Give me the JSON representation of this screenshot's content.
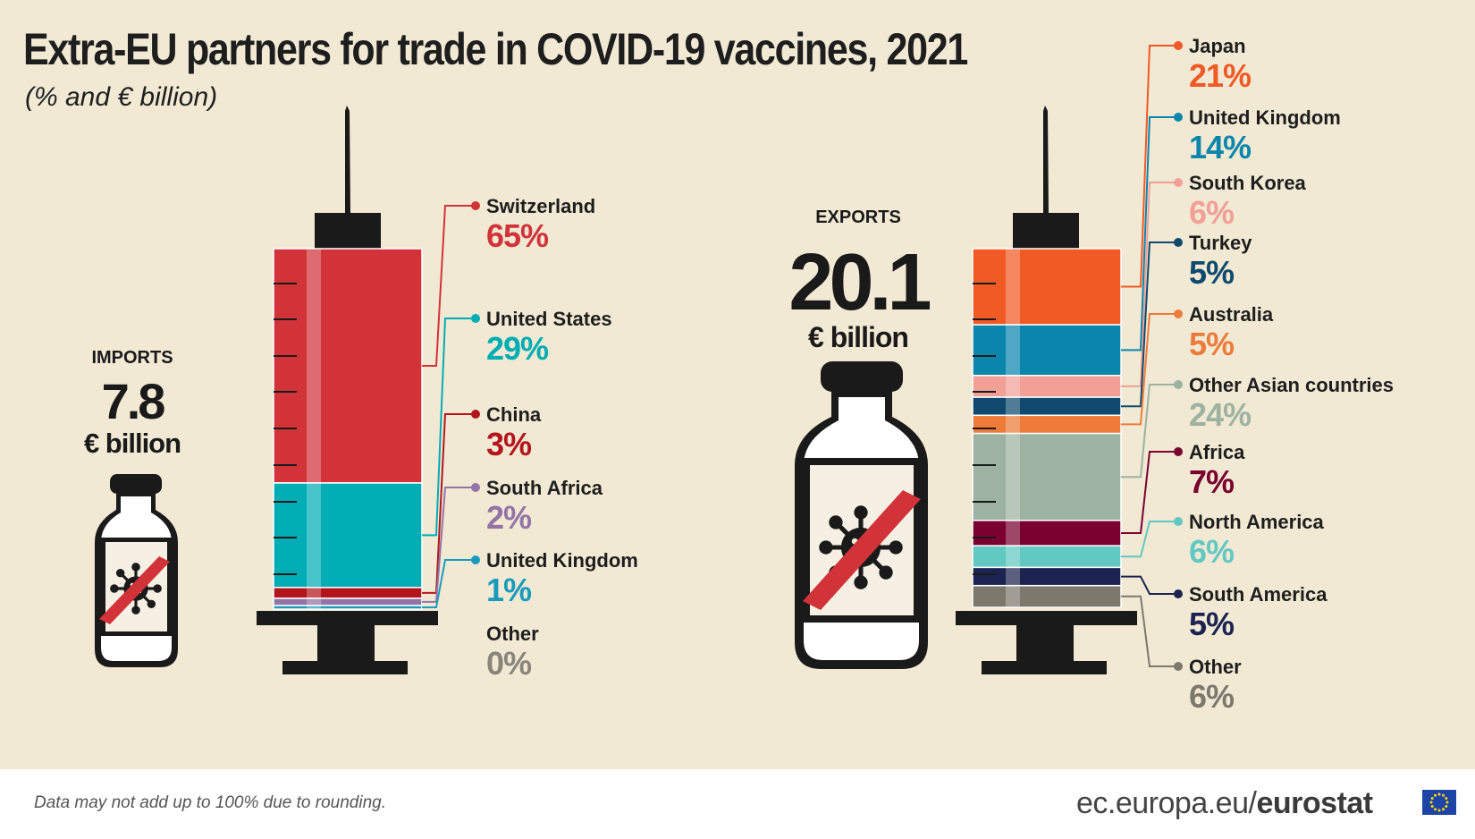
{
  "title": "Extra-EU partners for trade in COVID-19 vaccines, 2021",
  "subtitle": "(% and € billion)",
  "footnote": "Data may not add up to 100% due to rounding.",
  "source": {
    "domain": "ec.europa.eu/",
    "brand": "eurostat"
  },
  "colors": {
    "background": "#f1e9d4",
    "ink": "#1e1e1e"
  },
  "chart_data": [
    {
      "type": "bar",
      "stacked": true,
      "flow_label": "IMPORTS",
      "total_value": "7.8",
      "total_unit": "€ billion",
      "categories": [
        "Switzerland",
        "United States",
        "China",
        "South Africa",
        "United Kingdom",
        "Other"
      ],
      "values": [
        65,
        29,
        3,
        2,
        1,
        0
      ],
      "labels": [
        "65%",
        "29%",
        "3%",
        "2%",
        "1%",
        "0%"
      ],
      "colors": [
        "#d13339",
        "#00adb4",
        "#b4151d",
        "#9474a6",
        "#1a9bbd",
        "#8a857a"
      ]
    },
    {
      "type": "bar",
      "stacked": true,
      "flow_label": "EXPORTS",
      "total_value": "20.1",
      "total_unit": "€ billion",
      "categories": [
        "Japan",
        "United Kingdom",
        "South Korea",
        "Turkey",
        "Australia",
        "Other Asian countries",
        "Africa",
        "North America",
        "South America",
        "Other"
      ],
      "values": [
        21,
        14,
        6,
        5,
        5,
        24,
        7,
        6,
        5,
        6
      ],
      "labels": [
        "21%",
        "14%",
        "6%",
        "5%",
        "5%",
        "24%",
        "7%",
        "6%",
        "5%",
        "6%"
      ],
      "colors": [
        "#f15a25",
        "#0a86ad",
        "#f2a096",
        "#0f4a6e",
        "#ee7b3a",
        "#9db2a0",
        "#7a0030",
        "#62c8c2",
        "#1c2350",
        "#7d786d"
      ]
    }
  ]
}
